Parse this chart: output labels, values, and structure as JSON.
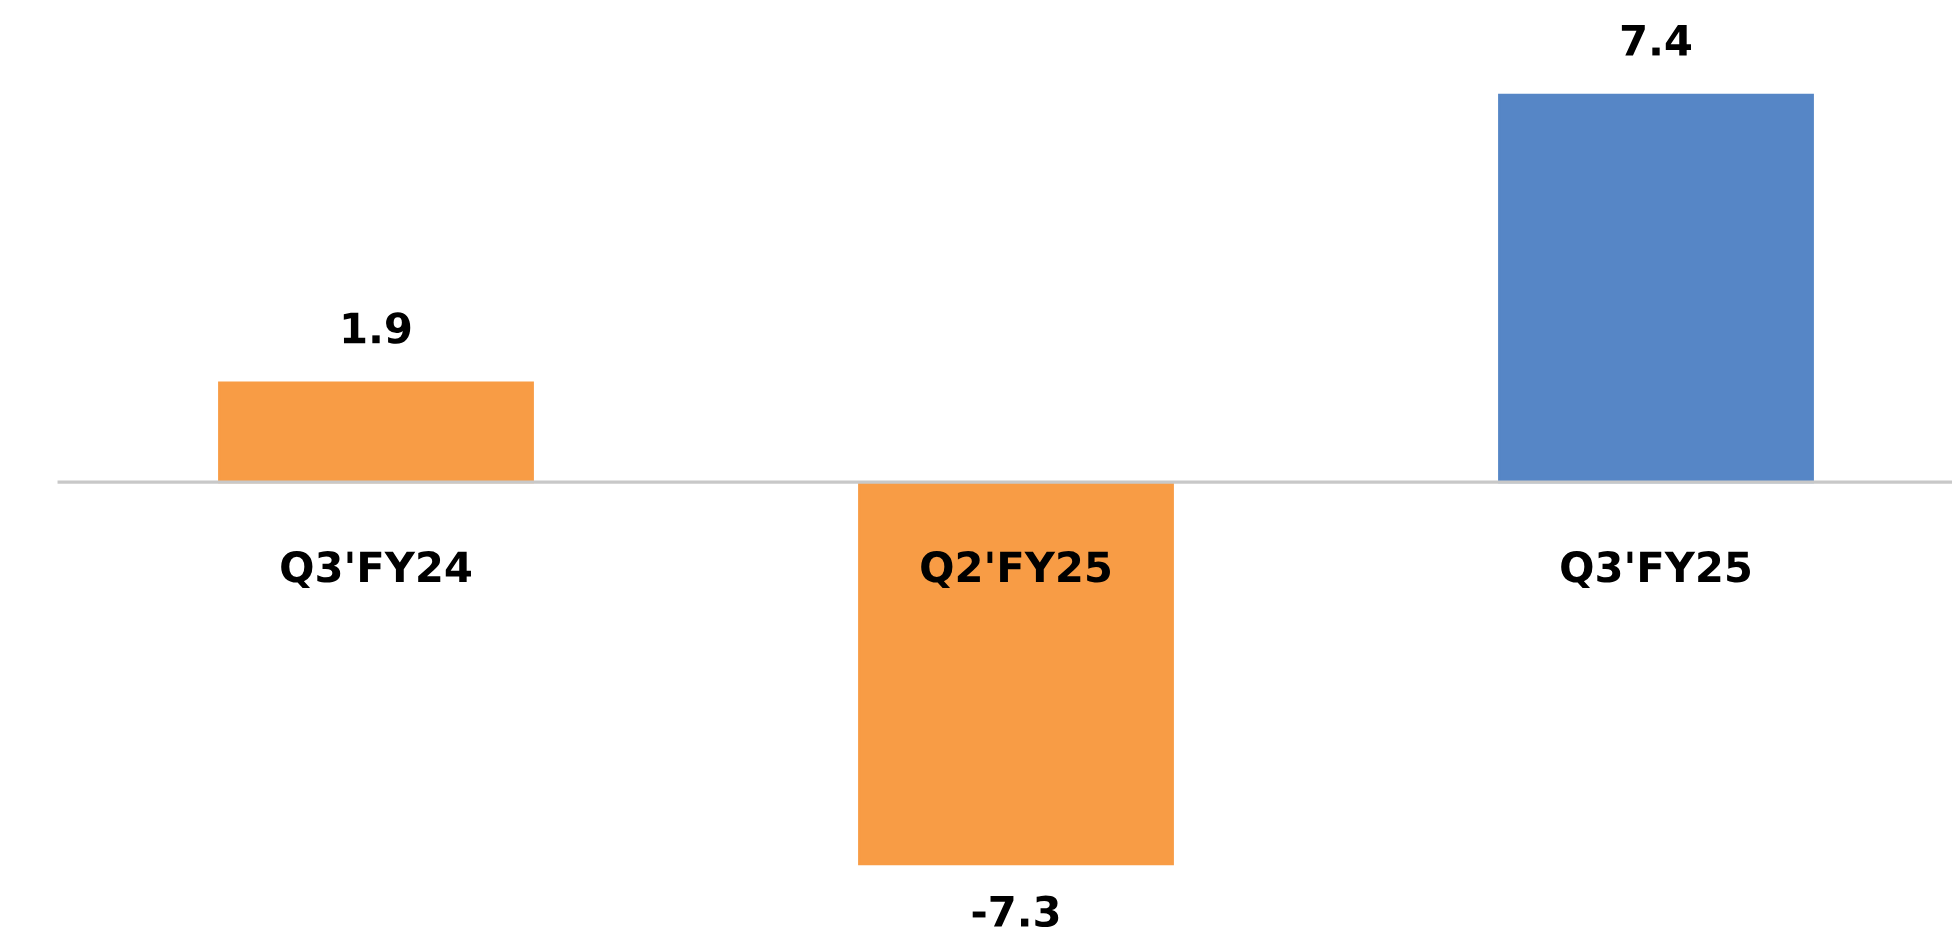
{
  "chart_data": {
    "type": "bar",
    "categories": [
      "Q3'FY24",
      "Q2'FY25",
      "Q3'FY25"
    ],
    "values": [
      1.9,
      -7.3,
      7.4
    ],
    "colors": [
      "#f89c45",
      "#f89c45",
      "#5686c6"
    ],
    "data_labels": true
  }
}
